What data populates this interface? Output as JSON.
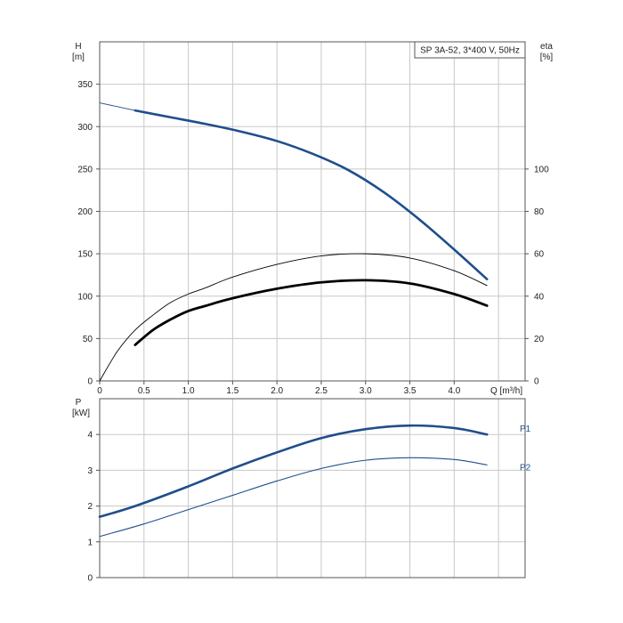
{
  "colors": {
    "grid": "#c8c8c8",
    "axis": "#555555",
    "head_curve": "#1f4e8c",
    "eta_curve": "#000000",
    "power_curve": "#1f4e8c",
    "text": "#222222"
  },
  "chart_data": [
    {
      "type": "line",
      "title": "SP 3A-52, 3*400 V, 50Hz",
      "ylabel": "H",
      "yunit": "[m]",
      "y2label": "eta",
      "y2unit": "[%]",
      "xlabel": "Q",
      "xunit": "[m³/h]",
      "xlim": [
        0,
        4.8
      ],
      "ylim": [
        0,
        400
      ],
      "y2lim": [
        0,
        160
      ],
      "xticks": [
        0,
        0.5,
        1.0,
        1.5,
        2.0,
        2.5,
        3.0,
        3.5,
        4.0
      ],
      "xtick_labels": [
        "0",
        "0.5",
        "1.0",
        "1.5",
        "2.0",
        "2.5",
        "3.0",
        "3.5",
        "4.0"
      ],
      "yticks": [
        0,
        50,
        100,
        150,
        200,
        250,
        300,
        350
      ],
      "ytick_labels": [
        "0",
        "50",
        "100",
        "150",
        "200",
        "250",
        "300",
        "350"
      ],
      "y2ticks": [
        0,
        20,
        40,
        60,
        80,
        100
      ],
      "y2tick_labels": [
        "0",
        "20",
        "40",
        "60",
        "80",
        "100"
      ],
      "grid": true,
      "series": [
        {
          "axis": "y",
          "style": "thin",
          "x": [
            0,
            0.4
          ],
          "y": [
            328,
            319
          ]
        },
        {
          "axis": "y",
          "style": "thick",
          "x": [
            0.4,
            0.8,
            1.2,
            1.6,
            2.0,
            2.4,
            2.8,
            3.2,
            3.6,
            4.0,
            4.37
          ],
          "y": [
            319,
            311,
            303,
            294,
            283,
            268,
            249,
            223,
            191,
            155,
            120
          ]
        },
        {
          "axis": "y2",
          "style": "thin",
          "x": [
            0,
            0.2,
            0.4,
            0.6,
            0.8,
            1.0,
            1.2,
            1.5,
            2.0,
            2.5,
            3.0,
            3.5,
            4.0,
            4.37
          ],
          "y": [
            0,
            14,
            24,
            31,
            37,
            41,
            44,
            49,
            55,
            59,
            60,
            58,
            52,
            45
          ]
        },
        {
          "axis": "y2",
          "style": "thick",
          "x": [
            0.4,
            0.6,
            0.8,
            1.0,
            1.2,
            1.5,
            2.0,
            2.5,
            3.0,
            3.5,
            4.0,
            4.37
          ],
          "y": [
            17,
            24,
            29,
            33,
            35.5,
            39,
            43.5,
            46.5,
            47.5,
            46,
            41,
            35.5
          ]
        }
      ]
    },
    {
      "type": "line",
      "ylabel": "P",
      "yunit": "[kW]",
      "xlim": [
        0,
        4.8
      ],
      "ylim": [
        0,
        5
      ],
      "yticks": [
        0,
        1,
        2,
        3,
        4
      ],
      "ytick_labels": [
        "0",
        "1",
        "2",
        "3",
        "4"
      ],
      "grid": true,
      "series": [
        {
          "name": "P1",
          "style": "thick",
          "x": [
            0,
            0.4,
            1.0,
            1.5,
            2.0,
            2.5,
            3.0,
            3.5,
            4.0,
            4.37
          ],
          "y": [
            1.7,
            2.0,
            2.55,
            3.05,
            3.5,
            3.9,
            4.15,
            4.25,
            4.18,
            4.0
          ]
        },
        {
          "name": "P2",
          "style": "thin",
          "x": [
            0,
            0.5,
            1.0,
            1.5,
            2.0,
            2.5,
            3.0,
            3.5,
            4.0,
            4.37
          ],
          "y": [
            1.15,
            1.5,
            1.9,
            2.3,
            2.7,
            3.05,
            3.28,
            3.35,
            3.3,
            3.15
          ]
        }
      ]
    }
  ]
}
